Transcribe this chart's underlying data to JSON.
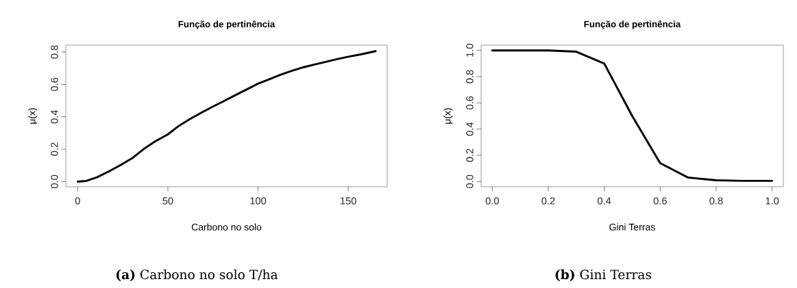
{
  "chart_data": [
    {
      "type": "line",
      "title": "Função de pertinência",
      "xlabel": "Carbono no solo",
      "ylabel": "μ(x)",
      "color": "#000000",
      "x": [
        0,
        4.8,
        11,
        17.5,
        23.8,
        30.2,
        36.5,
        42.9,
        49.8,
        55.5,
        61.9,
        68.2,
        74.6,
        80.9,
        87.2,
        93.6,
        99.9,
        106,
        112.6,
        118.9,
        125.3,
        131.6,
        138,
        144.3,
        150.6,
        157,
        165.2
      ],
      "values": [
        0,
        0.004,
        0.028,
        0.064,
        0.102,
        0.144,
        0.2,
        0.248,
        0.29,
        0.339,
        0.384,
        0.423,
        0.461,
        0.496,
        0.532,
        0.568,
        0.604,
        0.63,
        0.66,
        0.684,
        0.706,
        0.723,
        0.74,
        0.757,
        0.772,
        0.785,
        0.805
      ],
      "xlim": [
        -6.6,
        171.6
      ],
      "ylim": [
        -0.032,
        0.842
      ],
      "xticks": [
        0,
        50,
        100,
        150
      ],
      "yticks": [
        {
          "value": 0,
          "label": "0.0"
        },
        {
          "value": 0.2,
          "label": "0.2"
        },
        {
          "value": 0.4,
          "label": "0.4"
        },
        {
          "value": 0.6,
          "label": "0.6"
        },
        {
          "value": 0.8,
          "label": "0.8"
        }
      ],
      "annotations": [
        "**(a)** Carbono no solo T/ha"
      ]
    },
    {
      "type": "line",
      "title": "Função de pertinência",
      "xlabel": "Gini Terras",
      "ylabel": "μ(x)",
      "color": "#000000",
      "x": [
        0,
        0.1,
        0.2,
        0.3,
        0.4,
        0.5,
        0.6,
        0.7,
        0.8,
        0.9,
        1.0
      ],
      "values": [
        1,
        1,
        1,
        0.99,
        0.9,
        0.5,
        0.14,
        0.03,
        0.01,
        0.005,
        0.005
      ],
      "xlim": [
        -0.04,
        1.04
      ],
      "ylim": [
        -0.04,
        1.04
      ],
      "xticks": [
        {
          "value": 0,
          "label": "0.0"
        },
        {
          "value": 0.2,
          "label": "0.2"
        },
        {
          "value": 0.4,
          "label": "0.4"
        },
        {
          "value": 0.6,
          "label": "0.6"
        },
        {
          "value": 0.8,
          "label": "0.8"
        },
        {
          "value": 1,
          "label": "1.0"
        }
      ],
      "yticks": [
        {
          "value": 0,
          "label": "0.0"
        },
        {
          "value": 0.2,
          "label": "0.2"
        },
        {
          "value": 0.4,
          "label": "0.4"
        },
        {
          "value": 0.6,
          "label": "0.6"
        },
        {
          "value": 0.8,
          "label": "0.8"
        },
        {
          "value": 1,
          "label": "1.0"
        }
      ],
      "annotations": [
        "**(b)** Gini Terras"
      ]
    }
  ]
}
